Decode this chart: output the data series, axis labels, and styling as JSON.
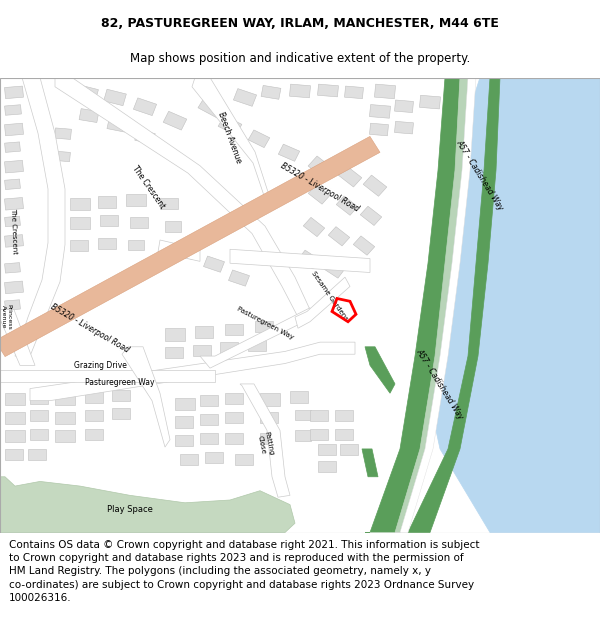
{
  "title_line1": "82, PASTUREGREEN WAY, IRLAM, MANCHESTER, M44 6TE",
  "title_line2": "Map shows position and indicative extent of the property.",
  "footer_lines": [
    "Contains OS data © Crown copyright and database right 2021. This information is subject",
    "to Crown copyright and database rights 2023 and is reproduced with the permission of",
    "HM Land Registry. The polygons (including the associated geometry, namely x, y",
    "co-ordinates) are subject to Crown copyright and database rights 2023 Ordnance Survey",
    "100026316."
  ],
  "background_color": "#ffffff",
  "map_bg_color": "#f8f8f5",
  "road_color_main": "#e8b89a",
  "road_color_minor": "#ffffff",
  "road_outline": "#cccccc",
  "green_dark": "#5a9e5a",
  "green_light": "#b8d4b8",
  "water_color": "#b8d8f0",
  "building_color": "#e0e0e0",
  "building_outline": "#c0c0c0",
  "plot_color": "#ff0000",
  "title_fontsize": 9.0,
  "subtitle_fontsize": 8.5,
  "footer_fontsize": 7.5,
  "label_fontsize": 5.5
}
